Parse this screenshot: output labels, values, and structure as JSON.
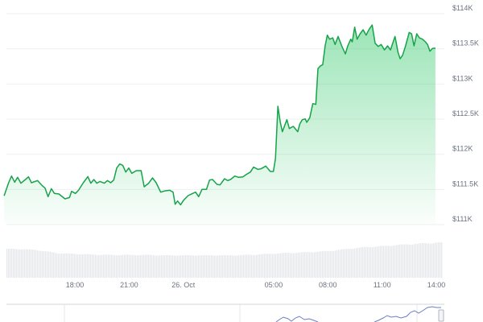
{
  "chart_data": {
    "type": "area",
    "title": "",
    "xlabel": "",
    "ylabel": "",
    "ylim": [
      111000,
      114000
    ],
    "grid": true,
    "y_ticks": [
      "$111K",
      "$111.5K",
      "$112K",
      "$112.5K",
      "$113K",
      "$113.5K",
      "$114K"
    ],
    "y_tick_values": [
      111000,
      111500,
      112000,
      112500,
      113000,
      113500,
      114000
    ],
    "x_ticks": [
      "18:00",
      "21:00",
      "26. Oct",
      "05:00",
      "08:00",
      "11:00",
      "14:00"
    ],
    "x_tick_times": [
      "25 Oct 18:00",
      "25 Oct 21:00",
      "26 Oct 00:00",
      "26 Oct 05:00",
      "26 Oct 08:00",
      "26 Oct 11:00",
      "26 Oct 14:00"
    ],
    "line_color": "#16a34a",
    "fill_color": "#22c55e",
    "series": [
      {
        "times": [
          "25 Oct 14:05",
          "25 Oct 14:20",
          "25 Oct 14:30",
          "25 Oct 14:40",
          "25 Oct 14:50",
          "25 Oct 15:01",
          "25 Oct 15:16",
          "25 Oct 15:26",
          "25 Oct 15:36",
          "25 Oct 15:56",
          "25 Oct 16:11",
          "25 Oct 16:21",
          "25 Oct 16:31",
          "25 Oct 16:42",
          "25 Oct 16:52",
          "25 Oct 17:07",
          "25 Oct 17:27",
          "25 Oct 17:42",
          "25 Oct 17:49",
          "25 Oct 18:02",
          "25 Oct 18:12",
          "25 Oct 18:28",
          "25 Oct 18:43",
          "25 Oct 18:53",
          "25 Oct 19:03",
          "25 Oct 19:13",
          "25 Oct 19:23",
          "25 Oct 19:38",
          "25 Oct 19:48",
          "25 Oct 19:59",
          "25 Oct 20:09",
          "25 Oct 20:19",
          "25 Oct 20:29",
          "25 Oct 20:39",
          "25 Oct 20:49",
          "25 Oct 20:59",
          "25 Oct 21:09",
          "25 Oct 21:24",
          "25 Oct 21:40",
          "25 Oct 21:50",
          "25 Oct 22:05",
          "25 Oct 22:18",
          "25 Oct 22:30",
          "25 Oct 22:45",
          "25 Oct 23:00",
          "25 Oct 23:15",
          "25 Oct 23:26",
          "25 Oct 23:33",
          "25 Oct 23:41",
          "25 Oct 23:51",
          "26 Oct 00:01",
          "26 Oct 00:16",
          "26 Oct 00:31",
          "26 Oct 00:41",
          "26 Oct 00:51",
          "26 Oct 01:02",
          "26 Oct 01:17",
          "26 Oct 01:27",
          "26 Oct 01:37",
          "26 Oct 01:52",
          "26 Oct 02:02",
          "26 Oct 02:17",
          "26 Oct 02:27",
          "26 Oct 02:37",
          "26 Oct 02:51",
          "26 Oct 03:03",
          "26 Oct 03:18",
          "26 Oct 03:28",
          "26 Oct 03:43",
          "26 Oct 03:53",
          "26 Oct 04:08",
          "26 Oct 04:18",
          "26 Oct 04:34",
          "26 Oct 04:49",
          "26 Oct 04:59",
          "26 Oct 05:06",
          "26 Oct 05:14",
          "26 Oct 05:22",
          "26 Oct 05:29",
          "26 Oct 05:39",
          "26 Oct 05:44",
          "26 Oct 05:52",
          "26 Oct 06:05",
          "26 Oct 06:20",
          "26 Oct 06:27",
          "26 Oct 06:35",
          "26 Oct 06:45",
          "26 Oct 06:50",
          "26 Oct 07:00",
          "26 Oct 07:10",
          "26 Oct 07:20",
          "26 Oct 07:27",
          "26 Oct 07:35",
          "26 Oct 07:43",
          "26 Oct 07:51",
          "26 Oct 07:58",
          "26 Oct 08:06",
          "26 Oct 08:16",
          "26 Oct 08:24",
          "26 Oct 08:34",
          "26 Oct 08:46",
          "26 Oct 08:58",
          "26 Oct 09:06",
          "26 Oct 09:16",
          "26 Oct 09:21",
          "26 Oct 09:29",
          "26 Oct 09:37",
          "26 Oct 09:47",
          "26 Oct 09:57",
          "26 Oct 10:07",
          "26 Oct 10:17",
          "26 Oct 10:27",
          "26 Oct 10:37",
          "26 Oct 10:47",
          "26 Oct 10:57",
          "26 Oct 11:08",
          "26 Oct 11:18",
          "26 Oct 11:28",
          "26 Oct 11:43",
          "26 Oct 11:53",
          "26 Oct 12:00",
          "26 Oct 12:08",
          "26 Oct 12:18",
          "26 Oct 12:30",
          "26 Oct 12:38",
          "26 Oct 12:46",
          "26 Oct 12:55",
          "26 Oct 13:04",
          "26 Oct 13:14",
          "26 Oct 13:24",
          "26 Oct 13:31",
          "26 Oct 13:39",
          "26 Oct 13:47",
          "26 Oct 13:57"
        ],
        "prices": [
          111410,
          111595,
          111690,
          111603,
          111672,
          111588,
          111641,
          111679,
          111595,
          111626,
          111557,
          111519,
          111397,
          111511,
          111443,
          111435,
          111366,
          111385,
          111473,
          111443,
          111488,
          111595,
          111683,
          111588,
          111641,
          111588,
          111614,
          111588,
          111626,
          111595,
          111633,
          111805,
          111862,
          111843,
          111748,
          111805,
          111729,
          111767,
          111767,
          111538,
          111588,
          111664,
          111595,
          111462,
          111481,
          111488,
          111462,
          111290,
          111336,
          111282,
          111347,
          111412,
          111443,
          111462,
          111397,
          111500,
          111500,
          111633,
          111641,
          111572,
          111565,
          111653,
          111626,
          111641,
          111691,
          111672,
          111679,
          111710,
          111748,
          111817,
          111786,
          111794,
          111832,
          111756,
          111756,
          111939,
          112683,
          112454,
          112321,
          112435,
          112492,
          112366,
          112397,
          112321,
          112435,
          112492,
          112504,
          112454,
          112519,
          112721,
          112710,
          113218,
          113256,
          113275,
          113542,
          113695,
          113637,
          113656,
          113561,
          113676,
          113542,
          113427,
          113542,
          113637,
          113599,
          113809,
          113637,
          113714,
          113771,
          113695,
          113779,
          113840,
          113580,
          113534,
          113561,
          113485,
          113542,
          113485,
          113676,
          113447,
          113359,
          113408,
          113542,
          113733,
          113714,
          113542,
          113714,
          113656,
          113637,
          113599,
          113561,
          113466,
          113504,
          113511
        ]
      }
    ],
    "volume": {
      "times": [
        "25 Oct 14:00",
        "25 Oct 15:00",
        "25 Oct 16:00",
        "25 Oct 17:00",
        "25 Oct 18:00",
        "25 Oct 19:00",
        "25 Oct 20:00",
        "25 Oct 21:00",
        "25 Oct 22:00",
        "25 Oct 23:00",
        "26 Oct 00:00",
        "26 Oct 01:00",
        "26 Oct 02:00",
        "26 Oct 03:00",
        "26 Oct 04:00",
        "26 Oct 05:00",
        "26 Oct 06:00",
        "26 Oct 07:00",
        "26 Oct 08:00",
        "26 Oct 09:00",
        "26 Oct 10:00",
        "26 Oct 11:00",
        "26 Oct 12:00",
        "26 Oct 13:00",
        "26 Oct 14:00"
      ],
      "relative": [
        0.82,
        0.82,
        0.78,
        0.7,
        0.68,
        0.66,
        0.65,
        0.65,
        0.65,
        0.64,
        0.64,
        0.64,
        0.64,
        0.64,
        0.66,
        0.69,
        0.71,
        0.73,
        0.76,
        0.82,
        0.87,
        0.9,
        0.94,
        0.97,
        1.0
      ],
      "color": "#e5e7eb"
    },
    "navigator": {
      "line_color": "#6b7fc4"
    }
  }
}
